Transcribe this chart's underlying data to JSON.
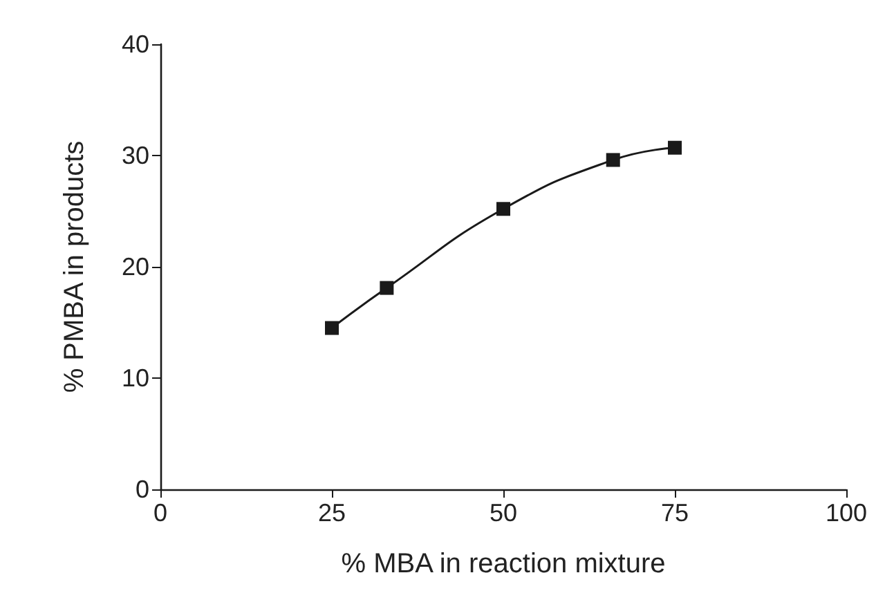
{
  "chart_data": {
    "type": "line",
    "xlabel": "% MBA in reaction mixture",
    "ylabel": "% PMBA in products",
    "x": [
      25,
      33,
      50,
      66,
      75
    ],
    "series": [
      {
        "color": "#1a1a1a",
        "values": [
          14.5,
          18.1,
          25.2,
          29.6,
          30.7
        ]
      }
    ],
    "xlim": [
      0,
      100
    ],
    "xticks": [
      0,
      25,
      50,
      75,
      100
    ],
    "ylim": [
      0,
      40
    ],
    "yticks": [
      0,
      10,
      20,
      30,
      40
    ],
    "grid": false,
    "marker": "square",
    "line_style": "solid"
  }
}
